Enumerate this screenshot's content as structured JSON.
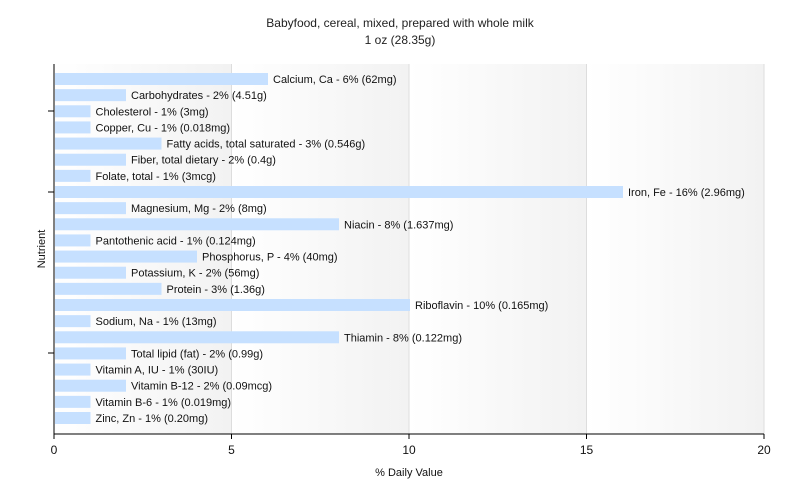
{
  "chart_data": {
    "type": "bar",
    "orientation": "horizontal",
    "title": "Babyfood, cereal, mixed, prepared with whole milk",
    "subtitle": "1 oz (28.35g)",
    "xlabel": "% Daily Value",
    "ylabel": "Nutrient",
    "xlim": [
      0,
      20
    ],
    "xticks": [
      0,
      5,
      10,
      15,
      20
    ],
    "grid": true,
    "bar_color": "#c6e0ff",
    "categories": [
      "Calcium, Ca",
      "Carbohydrates",
      "Cholesterol",
      "Copper, Cu",
      "Fatty acids, total saturated",
      "Fiber, total dietary",
      "Folate, total",
      "Iron, Fe",
      "Magnesium, Mg",
      "Niacin",
      "Pantothenic acid",
      "Phosphorus, P",
      "Potassium, K",
      "Protein",
      "Riboflavin",
      "Sodium, Na",
      "Thiamin",
      "Total lipid (fat)",
      "Vitamin A, IU",
      "Vitamin B-12",
      "Vitamin B-6",
      "Zinc, Zn"
    ],
    "values": [
      6,
      2,
      1,
      1,
      3,
      2,
      1,
      16,
      2,
      8,
      1,
      4,
      2,
      3,
      10,
      1,
      8,
      2,
      1,
      2,
      1,
      1
    ],
    "labels": [
      "Calcium, Ca - 6% (62mg)",
      "Carbohydrates - 2% (4.51g)",
      "Cholesterol - 1% (3mg)",
      "Copper, Cu - 1% (0.018mg)",
      "Fatty acids, total saturated - 3% (0.546g)",
      "Fiber, total dietary - 2% (0.4g)",
      "Folate, total - 1% (3mcg)",
      "Iron, Fe - 16% (2.96mg)",
      "Magnesium, Mg - 2% (8mg)",
      "Niacin - 8% (1.637mg)",
      "Pantothenic acid - 1% (0.124mg)",
      "Phosphorus, P - 4% (40mg)",
      "Potassium, K - 2% (56mg)",
      "Protein - 3% (1.36g)",
      "Riboflavin - 10% (0.165mg)",
      "Sodium, Na - 1% (13mg)",
      "Thiamin - 8% (0.122mg)",
      "Total lipid (fat) - 2% (0.99g)",
      "Vitamin A, IU - 1% (30IU)",
      "Vitamin B-12 - 2% (0.09mcg)",
      "Vitamin B-6 - 1% (0.019mg)",
      "Zinc, Zn - 1% (0.20mg)"
    ]
  }
}
